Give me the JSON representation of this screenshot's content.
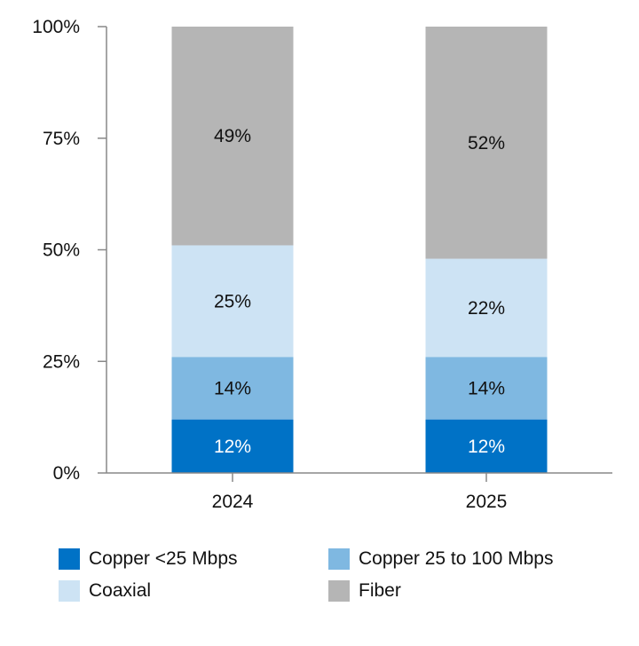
{
  "chart_data": {
    "type": "bar",
    "stacked": true,
    "categories": [
      "2024",
      "2025"
    ],
    "series": [
      {
        "name": "Copper <25 Mbps",
        "values": [
          12,
          12
        ],
        "color": "#0072C6",
        "label_color": "#ffffff"
      },
      {
        "name": "Copper 25 to 100 Mbps",
        "values": [
          14,
          14
        ],
        "color": "#7FB8E1",
        "label_color": "#111111"
      },
      {
        "name": "Coaxial",
        "values": [
          25,
          22
        ],
        "color": "#CDE3F4",
        "label_color": "#111111"
      },
      {
        "name": "Fiber",
        "values": [
          49,
          52
        ],
        "color": "#B5B5B5",
        "label_color": "#111111"
      }
    ],
    "data_labels": [
      [
        "12%",
        "12%"
      ],
      [
        "14%",
        "14%"
      ],
      [
        "25%",
        "22%"
      ],
      [
        "49%",
        "52%"
      ]
    ],
    "ylim": [
      0,
      100
    ],
    "yticks": [
      0,
      25,
      50,
      75,
      100
    ],
    "ytick_labels": [
      "0%",
      "25%",
      "50%",
      "75%",
      "100%"
    ],
    "title": "",
    "xlabel": "",
    "ylabel": "",
    "grid": false,
    "legend_position": "bottom"
  }
}
